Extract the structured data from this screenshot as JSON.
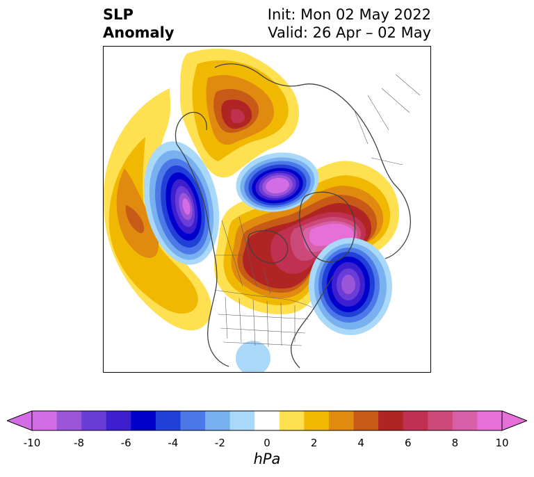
{
  "title": {
    "left_line1": "SLP",
    "left_line2": "Anomaly",
    "right_line1": "Init: Mon 02 May 2022",
    "right_line2": "Valid: 26 Apr – 02 May"
  },
  "colorbar": {
    "unit": "hPa",
    "ticks": [
      "-10",
      "-8",
      "-6",
      "-4",
      "-2",
      "0",
      "2",
      "4",
      "6",
      "8",
      "10"
    ],
    "colors": [
      "#d26de6",
      "#9b55d8",
      "#6a3cd8",
      "#3d1fd0",
      "#0000cc",
      "#2040d8",
      "#4d78e8",
      "#78b0f0",
      "#aad8f8",
      "#ffffff",
      "#ffe050",
      "#f0b800",
      "#e08a10",
      "#c85a18",
      "#b02424",
      "#c03050",
      "#cc4a7a",
      "#d860a8",
      "#e670d8"
    ],
    "extend_low_color": "#d26de6",
    "extend_high_color": "#e670d8"
  },
  "map": {
    "field": "sea level pressure anomaly",
    "projection": "polar stereographic north",
    "features": [
      {
        "name": "pacific-positive-anomaly",
        "peak_hpa": 5
      },
      {
        "name": "gulf-of-alaska-negative-anomaly",
        "peak_hpa": -10
      },
      {
        "name": "siberia-positive-anomaly",
        "peak_hpa": 7
      },
      {
        "name": "arctic-negative-anomaly",
        "peak_hpa": -10
      },
      {
        "name": "canada-greenland-positive-anomaly",
        "peak_hpa": 10
      },
      {
        "name": "north-atlantic-negative-anomaly",
        "peak_hpa": -8
      },
      {
        "name": "subtropical-pacific-negative-anomaly",
        "peak_hpa": -2
      }
    ]
  }
}
